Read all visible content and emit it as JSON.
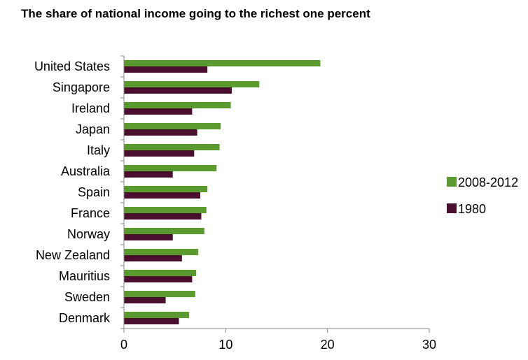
{
  "chart_data": {
    "type": "bar",
    "orientation": "horizontal",
    "title": "The share of national income going to the richest one percent",
    "xlabel": "",
    "ylabel": "",
    "xlim": [
      0,
      30
    ],
    "xticks": [
      "0",
      "10",
      "20",
      "30"
    ],
    "grid": false,
    "legend_position": "right",
    "categories": [
      "United States",
      "Singapore",
      "Ireland",
      "Japan",
      "Italy",
      "Australia",
      "Spain",
      "France",
      "Norway",
      "New Zealand",
      "Mauritius",
      "Sweden",
      "Denmark"
    ],
    "series": [
      {
        "name": "2008-2012",
        "color": "#5a9a2e",
        "values": [
          19.3,
          13.3,
          10.5,
          9.5,
          9.4,
          9.1,
          8.2,
          8.1,
          7.9,
          7.3,
          7.1,
          7.0,
          6.4
        ]
      },
      {
        "name": "1980",
        "color": "#4a0f2f",
        "values": [
          8.2,
          10.6,
          6.7,
          7.2,
          6.9,
          4.8,
          7.5,
          7.6,
          4.8,
          5.7,
          6.7,
          4.1,
          5.4
        ]
      }
    ]
  }
}
